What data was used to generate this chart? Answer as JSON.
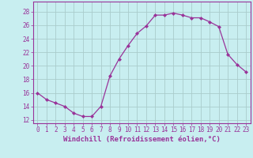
{
  "x": [
    0,
    1,
    2,
    3,
    4,
    5,
    6,
    7,
    8,
    9,
    10,
    11,
    12,
    13,
    14,
    15,
    16,
    17,
    18,
    19,
    20,
    21,
    22,
    23
  ],
  "y": [
    16,
    15,
    14.5,
    14,
    13,
    12.5,
    12.5,
    14,
    18.5,
    21,
    23,
    24.8,
    25.9,
    27.5,
    27.5,
    27.8,
    27.5,
    27.1,
    27.1,
    26.5,
    25.8,
    21.7,
    20.2,
    19.1
  ],
  "line_color": "#993399",
  "marker": "D",
  "markersize": 2.0,
  "linewidth": 0.9,
  "xlabel": "Windchill (Refroidissement éolien,°C)",
  "xlabel_fontsize": 6.5,
  "xlabel_color": "#993399",
  "xtick_labels": [
    "0",
    "1",
    "2",
    "3",
    "4",
    "5",
    "6",
    "7",
    "8",
    "9",
    "10",
    "11",
    "12",
    "13",
    "14",
    "15",
    "16",
    "17",
    "18",
    "19",
    "20",
    "21",
    "22",
    "23"
  ],
  "ytick_values": [
    12,
    14,
    16,
    18,
    20,
    22,
    24,
    26,
    28
  ],
  "ylim": [
    11.5,
    29.5
  ],
  "xlim": [
    -0.5,
    23.5
  ],
  "background_color": "#c8eef0",
  "grid_color": "#aacccc",
  "tick_color": "#993399",
  "tick_fontsize": 5.5,
  "spine_color": "#993399"
}
